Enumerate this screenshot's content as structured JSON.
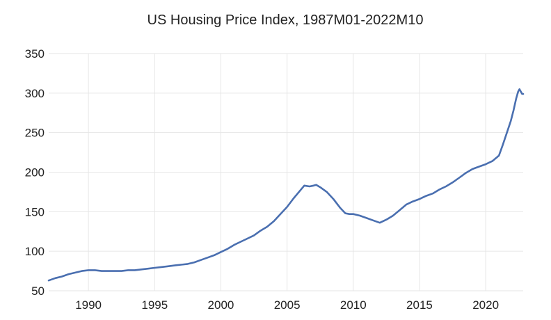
{
  "chart_data": {
    "type": "line",
    "title": "US Housing Price Index, 1987M01-2022M10",
    "xlabel": "",
    "ylabel": "",
    "x_range": [
      1987.0,
      2022.83
    ],
    "ylim": [
      50,
      350
    ],
    "x_ticks": [
      1990,
      1995,
      2000,
      2005,
      2010,
      2015,
      2020
    ],
    "y_ticks": [
      50,
      100,
      150,
      200,
      250,
      300,
      350
    ],
    "grid": true,
    "legend": "none",
    "series": [
      {
        "color": "#4a6fb0",
        "points": [
          [
            1987.0,
            63
          ],
          [
            1987.5,
            66
          ],
          [
            1988.0,
            68
          ],
          [
            1988.5,
            71
          ],
          [
            1989.0,
            73
          ],
          [
            1989.5,
            75
          ],
          [
            1990.0,
            76
          ],
          [
            1990.5,
            76
          ],
          [
            1991.0,
            75
          ],
          [
            1991.5,
            75
          ],
          [
            1992.0,
            75
          ],
          [
            1992.5,
            75
          ],
          [
            1993.0,
            76
          ],
          [
            1993.5,
            76
          ],
          [
            1994.0,
            77
          ],
          [
            1994.5,
            78
          ],
          [
            1995.0,
            79
          ],
          [
            1995.5,
            80
          ],
          [
            1996.0,
            81
          ],
          [
            1996.5,
            82
          ],
          [
            1997.0,
            83
          ],
          [
            1997.5,
            84
          ],
          [
            1998.0,
            86
          ],
          [
            1998.5,
            89
          ],
          [
            1999.0,
            92
          ],
          [
            1999.5,
            95
          ],
          [
            2000.0,
            99
          ],
          [
            2000.5,
            103
          ],
          [
            2001.0,
            108
          ],
          [
            2001.5,
            112
          ],
          [
            2002.0,
            116
          ],
          [
            2002.5,
            120
          ],
          [
            2003.0,
            126
          ],
          [
            2003.5,
            131
          ],
          [
            2004.0,
            138
          ],
          [
            2004.5,
            147
          ],
          [
            2005.0,
            156
          ],
          [
            2005.5,
            167
          ],
          [
            2006.0,
            177
          ],
          [
            2006.3,
            183
          ],
          [
            2006.7,
            182
          ],
          [
            2007.0,
            183
          ],
          [
            2007.2,
            184
          ],
          [
            2007.5,
            181
          ],
          [
            2008.0,
            175
          ],
          [
            2008.5,
            166
          ],
          [
            2009.0,
            155
          ],
          [
            2009.4,
            148
          ],
          [
            2009.7,
            147
          ],
          [
            2010.0,
            147
          ],
          [
            2010.5,
            145
          ],
          [
            2011.0,
            142
          ],
          [
            2011.5,
            139
          ],
          [
            2012.0,
            136
          ],
          [
            2012.5,
            140
          ],
          [
            2013.0,
            145
          ],
          [
            2013.5,
            152
          ],
          [
            2014.0,
            159
          ],
          [
            2014.5,
            163
          ],
          [
            2015.0,
            166
          ],
          [
            2015.5,
            170
          ],
          [
            2016.0,
            173
          ],
          [
            2016.5,
            178
          ],
          [
            2017.0,
            182
          ],
          [
            2017.5,
            187
          ],
          [
            2018.0,
            193
          ],
          [
            2018.5,
            199
          ],
          [
            2019.0,
            204
          ],
          [
            2019.5,
            207
          ],
          [
            2020.0,
            210
          ],
          [
            2020.5,
            214
          ],
          [
            2021.0,
            221
          ],
          [
            2021.3,
            235
          ],
          [
            2021.6,
            250
          ],
          [
            2021.9,
            265
          ],
          [
            2022.1,
            278
          ],
          [
            2022.3,
            293
          ],
          [
            2022.45,
            302
          ],
          [
            2022.55,
            305
          ],
          [
            2022.65,
            302
          ],
          [
            2022.75,
            299
          ],
          [
            2022.83,
            299
          ]
        ]
      }
    ]
  }
}
